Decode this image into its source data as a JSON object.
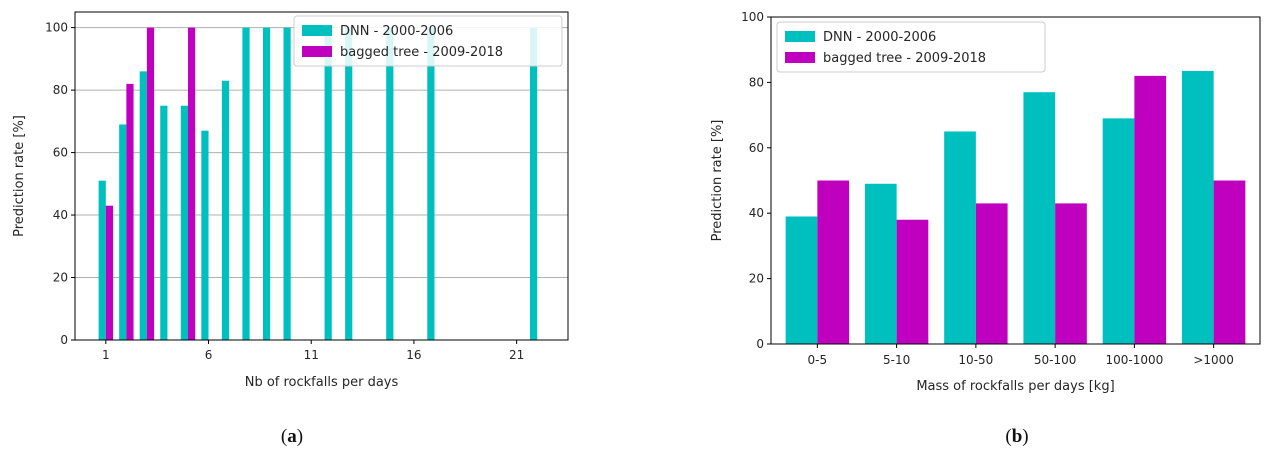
{
  "colors": {
    "dnn": "#00BFBF",
    "bagged": "#BF00BF"
  },
  "chart_data": [
    {
      "type": "bar",
      "panel_label": {
        "open": "(",
        "letter": "a",
        "close": ")"
      },
      "xlabel": "Nb of rockfalls per days",
      "ylabel": "Prediction rate [%]",
      "xlim": [
        -0.5,
        23.5
      ],
      "ylim": [
        0,
        105
      ],
      "xticks": [
        1,
        6,
        11,
        16,
        21
      ],
      "yticks": [
        0,
        20,
        40,
        60,
        80,
        100
      ],
      "legend": "top-right",
      "series": [
        {
          "name": "DNN - 2000-2006",
          "color_key": "dnn",
          "x": [
            1,
            2,
            3,
            4,
            5,
            6,
            7,
            8,
            9,
            10,
            12,
            13,
            15,
            17,
            22
          ],
          "values": [
            51,
            69,
            86,
            75,
            75,
            67,
            83,
            100,
            100,
            100,
            100,
            100,
            100,
            100,
            100
          ]
        },
        {
          "name": "bagged tree - 2009-2018",
          "color_key": "bagged",
          "x": [
            1,
            2,
            3,
            5
          ],
          "values": [
            43,
            82,
            100,
            100
          ]
        }
      ]
    },
    {
      "type": "bar",
      "panel_label": {
        "open": "(",
        "letter": "b",
        "close": ")"
      },
      "xlabel": "Mass of rockfalls per days [kg]",
      "ylabel": "Prediction rate [%]",
      "categories": [
        "0-5",
        "5-10",
        "10-50",
        "50-100",
        "100-1000",
        ">1000"
      ],
      "ylim": [
        0,
        100
      ],
      "yticks": [
        0,
        20,
        40,
        60,
        80,
        100
      ],
      "legend": "top-left",
      "series": [
        {
          "name": "DNN - 2000-2006",
          "color_key": "dnn",
          "values": [
            39,
            49,
            65,
            77,
            69,
            83.5
          ]
        },
        {
          "name": "bagged tree - 2009-2018",
          "color_key": "bagged",
          "values": [
            50,
            38,
            43,
            43,
            82,
            50
          ]
        }
      ]
    }
  ]
}
